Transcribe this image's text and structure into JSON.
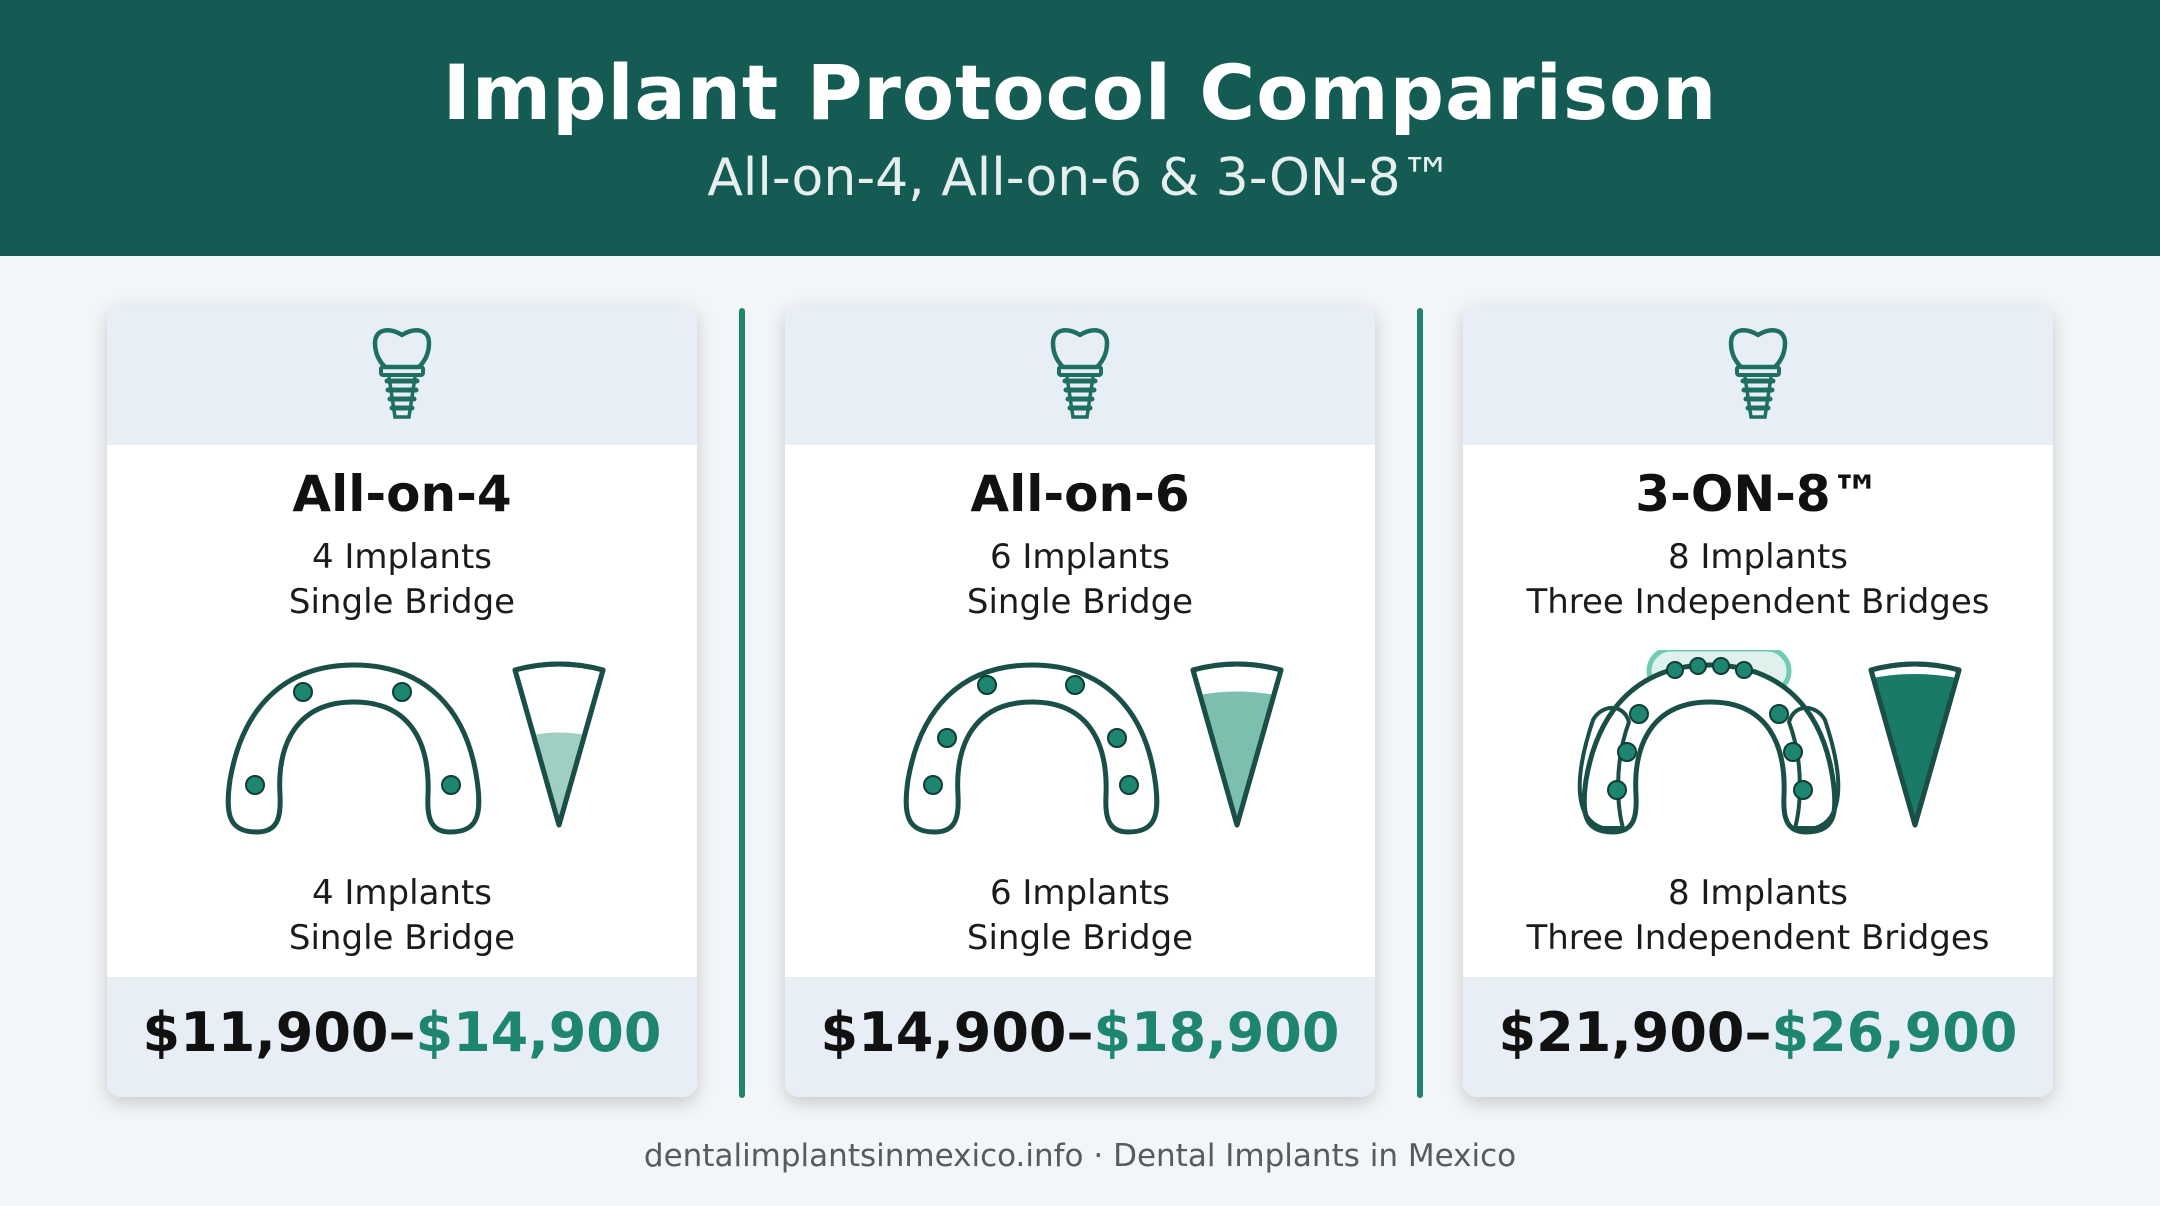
{
  "header": {
    "title": "Implant Protocol Comparison",
    "subtitle": "All-on-4, All-on-6 & 3-ON-8™"
  },
  "cards": [
    {
      "name": "All-on-4",
      "line1": "4 Implants",
      "line2": "Single Bridge",
      "line3": "4 Implants",
      "line4": "Single Bridge",
      "price_low": "$11,900–",
      "price_high": "$14,900",
      "fill_level": 0.45
    },
    {
      "name": "All-on-6",
      "line1": "6 Implants",
      "line2": "Single Bridge",
      "line3": "6 Implants",
      "line4": "Single Bridge",
      "price_low": "$14,900–",
      "price_high": "$18,900",
      "fill_level": 0.72
    },
    {
      "name": "3-ON-8™",
      "line1": "8 Implants",
      "line2": "Three Independent Bridges",
      "line3": "8 Implants",
      "line4": "Three Independent Bridges",
      "price_low": "$21,900–",
      "price_high": "$26,900",
      "fill_level": 0.95
    }
  ],
  "footer": {
    "text": "dentalimplantsinmexico.info · Dental Implants in Mexico"
  },
  "colors": {
    "header_bg": "#145c53",
    "accent": "#1e8570",
    "panel_bg": "#e8eef6"
  },
  "icons": [
    "dental-implant-icon",
    "arch-implant-diagram",
    "cone-fill-gauge"
  ]
}
